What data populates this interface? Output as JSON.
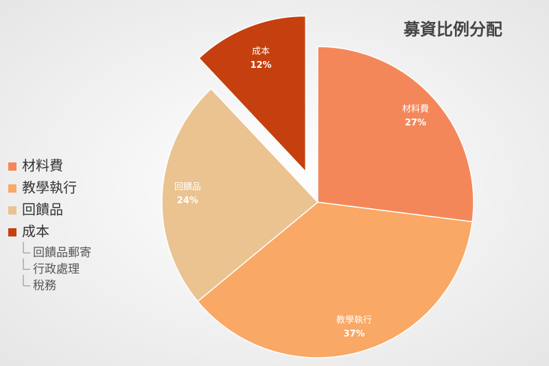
{
  "chart_data": {
    "type": "pie",
    "title": "募資比例分配",
    "categories": [
      "材料費",
      "教學執行",
      "回饋品",
      "成本"
    ],
    "values": [
      27,
      37,
      24,
      12
    ],
    "value_labels": [
      "27%",
      "37%",
      "24%",
      "12%"
    ],
    "colors": [
      "#f4875a",
      "#f9a865",
      "#eac391",
      "#c5400e"
    ],
    "exploded": [
      false,
      false,
      false,
      true
    ],
    "legend": "left",
    "legend_subitems": [
      "回饋品郵寄",
      "行政處理",
      "稅務"
    ]
  }
}
